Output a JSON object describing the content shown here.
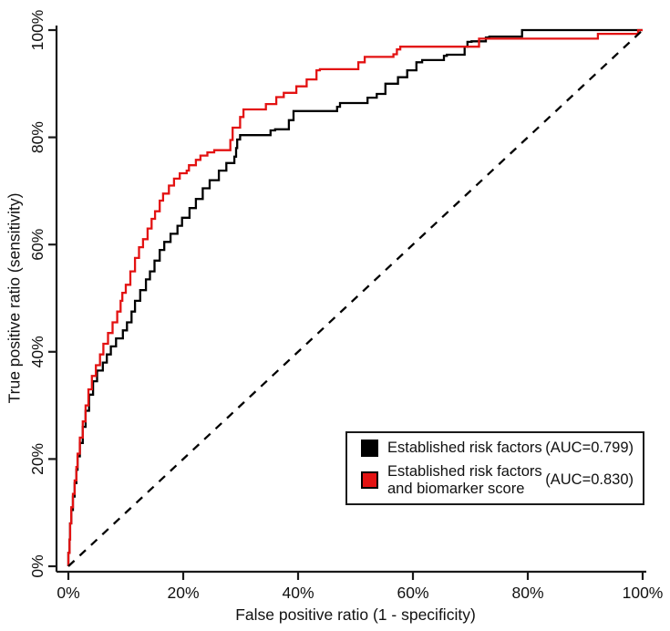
{
  "chart_data": {
    "type": "line",
    "subtype": "roc-step-curves",
    "title": "",
    "xlabel": "False positive ratio (1 - specificity)",
    "ylabel": "True positive ratio (sensitivity)",
    "xlim": [
      0,
      100
    ],
    "ylim": [
      0,
      100
    ],
    "x_tick_labels": [
      "0%",
      "20%",
      "40%",
      "60%",
      "80%",
      "100%"
    ],
    "y_tick_labels": [
      "0%",
      "20%",
      "40%",
      "60%",
      "80%",
      "100%"
    ],
    "x_tick_values": [
      0,
      20,
      40,
      60,
      80,
      100
    ],
    "y_tick_values": [
      0,
      20,
      40,
      60,
      80,
      100
    ],
    "grid": false,
    "colors": {
      "black_series": "#000000",
      "red_series": "#e31212",
      "axis": "#1a1a1a",
      "background": "#ffffff"
    },
    "legend": {
      "position": "bottom-right",
      "entries": [
        {
          "label": "Established risk factors",
          "auc_label": "(AUC=0.799)",
          "auc": 0.799,
          "color": "#000000"
        },
        {
          "label": "Established risk factors and biomarker score",
          "auc_label": "(AUC=0.830)",
          "auc": 0.83,
          "color": "#e31212"
        }
      ]
    },
    "series": [
      {
        "name": "Established risk factors",
        "auc": 0.799,
        "color": "#000000",
        "style": "step-solid",
        "points": [
          [
            0,
            0
          ],
          [
            0,
            2.5
          ],
          [
            0.2,
            5
          ],
          [
            0.3,
            8
          ],
          [
            0.5,
            10.5
          ],
          [
            0.8,
            13
          ],
          [
            1.1,
            15.5
          ],
          [
            1.4,
            18
          ],
          [
            1.6,
            20.5
          ],
          [
            2.0,
            23
          ],
          [
            2.5,
            26
          ],
          [
            3.0,
            29
          ],
          [
            3.6,
            32
          ],
          [
            4.3,
            34.5
          ],
          [
            5.0,
            36.5
          ],
          [
            6.0,
            38
          ],
          [
            6.7,
            39.5
          ],
          [
            7.4,
            41
          ],
          [
            8.3,
            42.5
          ],
          [
            9.5,
            44
          ],
          [
            10.2,
            45.5
          ],
          [
            11.0,
            47.5
          ],
          [
            11.6,
            49.5
          ],
          [
            12.5,
            51.5
          ],
          [
            13.5,
            53.5
          ],
          [
            14.2,
            55
          ],
          [
            15.0,
            57
          ],
          [
            15.9,
            59
          ],
          [
            16.7,
            60.5
          ],
          [
            17.8,
            62
          ],
          [
            19.0,
            63.5
          ],
          [
            19.8,
            65
          ],
          [
            21.1,
            66.8
          ],
          [
            22.2,
            68.5
          ],
          [
            23.4,
            70.5
          ],
          [
            24.6,
            72
          ],
          [
            26.2,
            73.8
          ],
          [
            27.5,
            75.2
          ],
          [
            28.9,
            76.4
          ],
          [
            29.2,
            78
          ],
          [
            29.4,
            79.6
          ],
          [
            29.9,
            80.4
          ],
          [
            34.6,
            80.4
          ],
          [
            35.2,
            81.3
          ],
          [
            36.0,
            81.5
          ],
          [
            38.0,
            81.5
          ],
          [
            38.4,
            83.2
          ],
          [
            39.2,
            84.9
          ],
          [
            46.3,
            84.9
          ],
          [
            46.8,
            85.7
          ],
          [
            47.3,
            86.4
          ],
          [
            51.6,
            86.4
          ],
          [
            52.1,
            87.4
          ],
          [
            53.7,
            88.1
          ],
          [
            55.2,
            90.0
          ],
          [
            57.4,
            91.2
          ],
          [
            59.0,
            92.5
          ],
          [
            60.6,
            94.0
          ],
          [
            61.6,
            94.4
          ],
          [
            64.8,
            94.4
          ],
          [
            65.4,
            95.2
          ],
          [
            65.9,
            95.4
          ],
          [
            68.3,
            95.4
          ],
          [
            69.0,
            96.9
          ],
          [
            69.5,
            97.8
          ],
          [
            70.2,
            97.9
          ],
          [
            72.2,
            97.9
          ],
          [
            72.7,
            98.6
          ],
          [
            73.3,
            98.8
          ],
          [
            78.6,
            98.8
          ],
          [
            79.0,
            100
          ],
          [
            100,
            100
          ]
        ]
      },
      {
        "name": "Established risk factors and biomarker score",
        "auc": 0.83,
        "color": "#e31212",
        "style": "step-solid",
        "points": [
          [
            0,
            0
          ],
          [
            0,
            2.5
          ],
          [
            0.2,
            5
          ],
          [
            0.3,
            8
          ],
          [
            0.5,
            11
          ],
          [
            0.8,
            13.5
          ],
          [
            1.1,
            16
          ],
          [
            1.4,
            18.5
          ],
          [
            1.6,
            21
          ],
          [
            2.0,
            24
          ],
          [
            2.5,
            27
          ],
          [
            3.0,
            30
          ],
          [
            3.5,
            33
          ],
          [
            4.1,
            35.5
          ],
          [
            4.8,
            37.5
          ],
          [
            5.5,
            39.5
          ],
          [
            6.1,
            41.5
          ],
          [
            6.9,
            43.5
          ],
          [
            7.7,
            45.5
          ],
          [
            8.5,
            47.5
          ],
          [
            9.1,
            49.5
          ],
          [
            9.4,
            51
          ],
          [
            10.0,
            52.5
          ],
          [
            10.8,
            55
          ],
          [
            11.6,
            57.5
          ],
          [
            12.3,
            59.5
          ],
          [
            13.0,
            61
          ],
          [
            13.8,
            63
          ],
          [
            14.5,
            64.8
          ],
          [
            15.1,
            66.2
          ],
          [
            15.9,
            68.2
          ],
          [
            16.5,
            69.5
          ],
          [
            17.5,
            71
          ],
          [
            18.4,
            72.3
          ],
          [
            19.4,
            73.3
          ],
          [
            20.6,
            73.8
          ],
          [
            21.0,
            74.8
          ],
          [
            22.2,
            75.8
          ],
          [
            23.0,
            76.6
          ],
          [
            24.2,
            77.2
          ],
          [
            25.4,
            77.6
          ],
          [
            27.8,
            77.6
          ],
          [
            28.2,
            79.5
          ],
          [
            28.6,
            81.8
          ],
          [
            29.9,
            83.8
          ],
          [
            30.5,
            85.2
          ],
          [
            33.6,
            85.2
          ],
          [
            34.4,
            86.2
          ],
          [
            36.2,
            87.5
          ],
          [
            37.5,
            88.3
          ],
          [
            39.7,
            89.5
          ],
          [
            41.5,
            90.8
          ],
          [
            43.2,
            92.5
          ],
          [
            43.8,
            92.7
          ],
          [
            50.0,
            92.7
          ],
          [
            50.5,
            94.0
          ],
          [
            51.6,
            95.0
          ],
          [
            56.6,
            95.5
          ],
          [
            57.2,
            96.4
          ],
          [
            57.8,
            96.9
          ],
          [
            70.6,
            96.9
          ],
          [
            71.5,
            98.4
          ],
          [
            91.7,
            98.4
          ],
          [
            92.2,
            99.3
          ],
          [
            98.6,
            99.3
          ],
          [
            99.2,
            100
          ],
          [
            100,
            100
          ]
        ]
      },
      {
        "name": "Chance reference line",
        "color": "#000000",
        "style": "dashed",
        "points": [
          [
            0,
            0
          ],
          [
            100,
            100
          ]
        ]
      }
    ]
  }
}
